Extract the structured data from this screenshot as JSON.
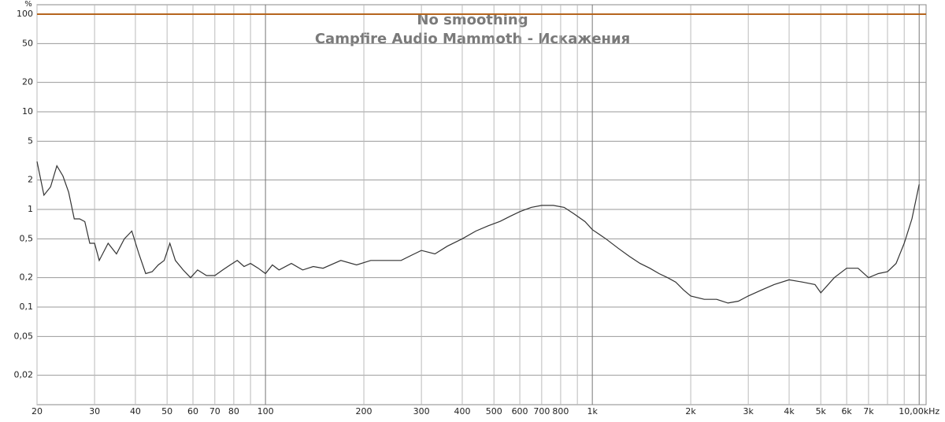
{
  "chart_data": {
    "type": "line",
    "title": "No smoothing",
    "subtitle": "Campfire Audio Mammoth - Искажения",
    "y_label": "%",
    "log_x": true,
    "log_y": true,
    "grid": true,
    "xlim": [
      20,
      10500
    ],
    "ylim": [
      0.01,
      100
    ],
    "xticks": [
      20,
      30,
      40,
      50,
      60,
      70,
      80,
      100,
      200,
      300,
      400,
      500,
      600,
      700,
      800,
      {
        "value": 1000,
        "label": "1k"
      },
      {
        "value": 2000,
        "label": "2k"
      },
      {
        "value": 3000,
        "label": "3k"
      },
      {
        "value": 4000,
        "label": "4k"
      },
      {
        "value": 5000,
        "label": "5k"
      },
      {
        "value": 6000,
        "label": "6k"
      },
      {
        "value": 7000,
        "label": "7k"
      },
      {
        "value": 10000,
        "label": "10,00kHz"
      }
    ],
    "xgrid_minor": [
      90,
      900,
      8000,
      9000
    ],
    "yticks": [
      100,
      50,
      20,
      10,
      5,
      2,
      1,
      {
        "value": 0.5,
        "label": "0,5"
      },
      {
        "value": 0.2,
        "label": "0,2"
      },
      {
        "value": 0.1,
        "label": "0,1"
      },
      {
        "value": 0.05,
        "label": "0,05"
      },
      {
        "value": 0.02,
        "label": "0,02"
      }
    ],
    "reference_line": {
      "value": 100,
      "color": "#b5651d"
    },
    "x": [
      20,
      21,
      22,
      23,
      24,
      25,
      26,
      27,
      28,
      29,
      30,
      31,
      33,
      35,
      37,
      39,
      41,
      43,
      45,
      47,
      49,
      51,
      53,
      56,
      59,
      62,
      66,
      70,
      74,
      78,
      82,
      86,
      90,
      95,
      100,
      105,
      110,
      120,
      130,
      140,
      150,
      170,
      190,
      210,
      230,
      260,
      280,
      300,
      330,
      360,
      400,
      440,
      480,
      520,
      560,
      600,
      650,
      700,
      760,
      820,
      880,
      950,
      1000,
      1100,
      1200,
      1300,
      1400,
      1500,
      1600,
      1700,
      1800,
      1900,
      2000,
      2200,
      2400,
      2600,
      2800,
      3000,
      3300,
      3600,
      4000,
      4400,
      4800,
      5000,
      5500,
      6000,
      6500,
      7000,
      7500,
      8000,
      8500,
      9000,
      9500,
      10000
    ],
    "series": [
      {
        "color": "#333333",
        "values": [
          3.1,
          1.4,
          1.7,
          2.8,
          2.2,
          1.5,
          0.8,
          0.8,
          0.75,
          0.45,
          0.45,
          0.3,
          0.45,
          0.35,
          0.5,
          0.6,
          0.35,
          0.22,
          0.23,
          0.27,
          0.3,
          0.45,
          0.3,
          0.24,
          0.2,
          0.24,
          0.21,
          0.21,
          0.24,
          0.27,
          0.3,
          0.26,
          0.28,
          0.25,
          0.22,
          0.27,
          0.24,
          0.28,
          0.24,
          0.26,
          0.25,
          0.3,
          0.27,
          0.3,
          0.3,
          0.3,
          0.34,
          0.38,
          0.35,
          0.42,
          0.5,
          0.6,
          0.68,
          0.75,
          0.85,
          0.95,
          1.05,
          1.1,
          1.1,
          1.05,
          0.9,
          0.75,
          0.62,
          0.5,
          0.4,
          0.33,
          0.28,
          0.25,
          0.22,
          0.2,
          0.18,
          0.15,
          0.13,
          0.12,
          0.12,
          0.11,
          0.115,
          0.13,
          0.15,
          0.17,
          0.19,
          0.18,
          0.17,
          0.14,
          0.2,
          0.25,
          0.25,
          0.2,
          0.22,
          0.23,
          0.28,
          0.45,
          0.8,
          1.8
        ]
      }
    ]
  }
}
